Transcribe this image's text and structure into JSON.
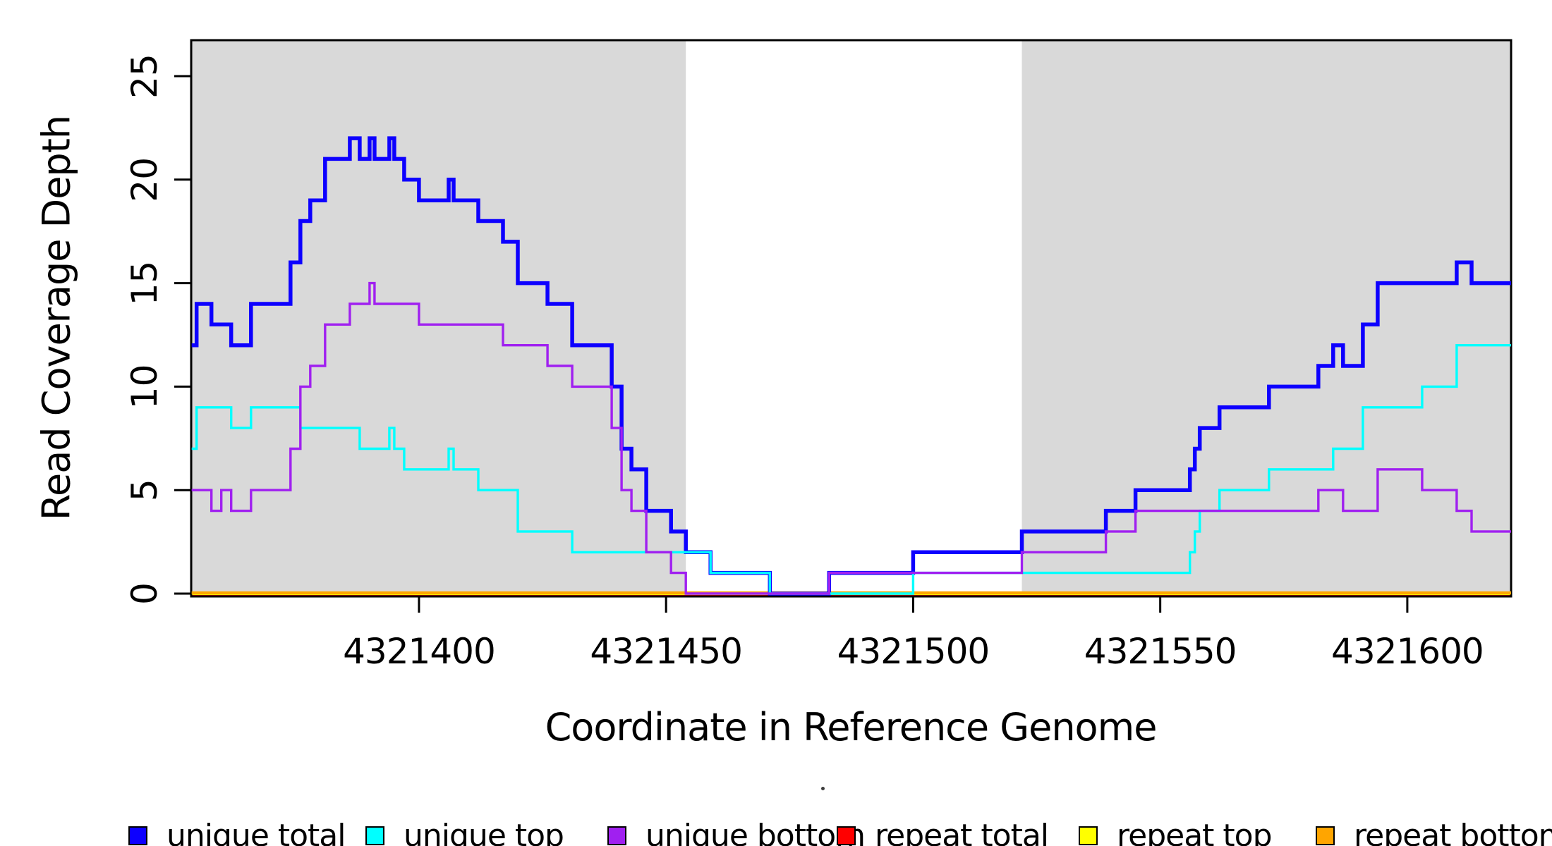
{
  "figure": {
    "background": "#ffffff",
    "plot_background_default": "#ffffff"
  },
  "colors": {
    "shaded_band": "#d9d9d9",
    "box_border": "#000000",
    "tick": "#000000",
    "text": "#000000",
    "unique_total": "#0d00ff",
    "unique_top": "#00ffff",
    "unique_bottom": "#a020f0",
    "repeat_total": "#ff0000",
    "repeat_top": "#ffff00",
    "repeat_bottom": "#ffa500"
  },
  "y_axis": {
    "title": "Read Coverage Depth",
    "ticks": [
      0,
      5,
      10,
      15,
      20,
      25
    ]
  },
  "x_axis": {
    "title": "Coordinate in Reference Genome",
    "ticks": [
      4321400,
      4321450,
      4321500,
      4321550,
      4321600
    ]
  },
  "legend": {
    "items": [
      {
        "label": "unique total",
        "color": "#0d00ff"
      },
      {
        "label": "unique top",
        "color": "#00ffff"
      },
      {
        "label": "unique bottom",
        "color": "#a020f0"
      },
      {
        "label": "repeat total",
        "color": "#ff0000"
      },
      {
        "label": "repeat top",
        "color": "#ffff00"
      },
      {
        "label": "repeat bottom",
        "color": "#ffa500"
      }
    ]
  },
  "chart_data": {
    "type": "line",
    "subtype": "step-after",
    "title": "",
    "xlabel": "Coordinate in Reference Genome",
    "ylabel": "Read Coverage Depth",
    "x_domain": [
      4321353.9,
      4321621
    ],
    "y_domain": [
      0,
      26.74
    ],
    "x_end": 4321621,
    "grid": false,
    "legend_position": "bottom",
    "shaded_regions": [
      {
        "x0": 4321353.9,
        "x1": 4321454,
        "color": "#d9d9d9"
      },
      {
        "x0": 4321522,
        "x1": 4321621,
        "color": "#d9d9d9"
      }
    ],
    "series": [
      {
        "name": "repeat total",
        "color": "#ff0000",
        "width": 3,
        "points": [
          [
            4321354,
            0
          ]
        ]
      },
      {
        "name": "repeat top",
        "color": "#ffff00",
        "width": 3,
        "points": [
          [
            4321354,
            0
          ]
        ]
      },
      {
        "name": "repeat bottom",
        "color": "#ffa500",
        "width": 4.5,
        "points": [
          [
            4321354,
            0
          ]
        ]
      },
      {
        "name": "unique total",
        "color": "#0d00ff",
        "width": 5.5,
        "points": [
          [
            4321354,
            12
          ],
          [
            4321355,
            14
          ],
          [
            4321358,
            13
          ],
          [
            4321362,
            12
          ],
          [
            4321366,
            14
          ],
          [
            4321374,
            16
          ],
          [
            4321376,
            18
          ],
          [
            4321378,
            19
          ],
          [
            4321381,
            21
          ],
          [
            4321386,
            22
          ],
          [
            4321388,
            21
          ],
          [
            4321390,
            22
          ],
          [
            4321391,
            21
          ],
          [
            4321394,
            22
          ],
          [
            4321395,
            21
          ],
          [
            4321397,
            20
          ],
          [
            4321400,
            19
          ],
          [
            4321406,
            20
          ],
          [
            4321407,
            19
          ],
          [
            4321412,
            18
          ],
          [
            4321417,
            17
          ],
          [
            4321420,
            15
          ],
          [
            4321426,
            14
          ],
          [
            4321431,
            12
          ],
          [
            4321439,
            10
          ],
          [
            4321441,
            7
          ],
          [
            4321443,
            6
          ],
          [
            4321446,
            4
          ],
          [
            4321451,
            3
          ],
          [
            4321454,
            2
          ],
          [
            4321459,
            1
          ],
          [
            4321471,
            0
          ],
          [
            4321483,
            1
          ],
          [
            4321500,
            2
          ],
          [
            4321522,
            3
          ],
          [
            4321539,
            4
          ],
          [
            4321545,
            5
          ],
          [
            4321556,
            6
          ],
          [
            4321557,
            7
          ],
          [
            4321558,
            8
          ],
          [
            4321562,
            9
          ],
          [
            4321572,
            10
          ],
          [
            4321582,
            11
          ],
          [
            4321585,
            12
          ],
          [
            4321587,
            11
          ],
          [
            4321591,
            13
          ],
          [
            4321594,
            15
          ],
          [
            4321610,
            16
          ],
          [
            4321613,
            15
          ]
        ]
      },
      {
        "name": "unique top",
        "color": "#00ffff",
        "width": 3.4,
        "points": [
          [
            4321354,
            7
          ],
          [
            4321355,
            9
          ],
          [
            4321362,
            8
          ],
          [
            4321366,
            9
          ],
          [
            4321376,
            8
          ],
          [
            4321388,
            7
          ],
          [
            4321394,
            8
          ],
          [
            4321395,
            7
          ],
          [
            4321397,
            6
          ],
          [
            4321406,
            7
          ],
          [
            4321407,
            6
          ],
          [
            4321412,
            5
          ],
          [
            4321420,
            3
          ],
          [
            4321431,
            2
          ],
          [
            4321459,
            1
          ],
          [
            4321471,
            0
          ],
          [
            4321500,
            1
          ],
          [
            4321556,
            2
          ],
          [
            4321557,
            3
          ],
          [
            4321558,
            4
          ],
          [
            4321562,
            5
          ],
          [
            4321572,
            6
          ],
          [
            4321585,
            7
          ],
          [
            4321591,
            9
          ],
          [
            4321603,
            10
          ],
          [
            4321610,
            12
          ]
        ]
      },
      {
        "name": "unique bottom",
        "color": "#a020f0",
        "width": 3.4,
        "points": [
          [
            4321354,
            5
          ],
          [
            4321358,
            4
          ],
          [
            4321360,
            5
          ],
          [
            4321362,
            4
          ],
          [
            4321366,
            5
          ],
          [
            4321374,
            7
          ],
          [
            4321376,
            10
          ],
          [
            4321378,
            11
          ],
          [
            4321381,
            13
          ],
          [
            4321386,
            14
          ],
          [
            4321390,
            15
          ],
          [
            4321391,
            14
          ],
          [
            4321400,
            13
          ],
          [
            4321417,
            12
          ],
          [
            4321426,
            11
          ],
          [
            4321431,
            10
          ],
          [
            4321439,
            8
          ],
          [
            4321441,
            5
          ],
          [
            4321443,
            4
          ],
          [
            4321446,
            2
          ],
          [
            4321451,
            1
          ],
          [
            4321454,
            0
          ],
          [
            4321483,
            1
          ],
          [
            4321522,
            2
          ],
          [
            4321539,
            3
          ],
          [
            4321545,
            4
          ],
          [
            4321582,
            5
          ],
          [
            4321587,
            4
          ],
          [
            4321594,
            6
          ],
          [
            4321603,
            5
          ],
          [
            4321610,
            4
          ],
          [
            4321613,
            3
          ]
        ]
      }
    ]
  }
}
